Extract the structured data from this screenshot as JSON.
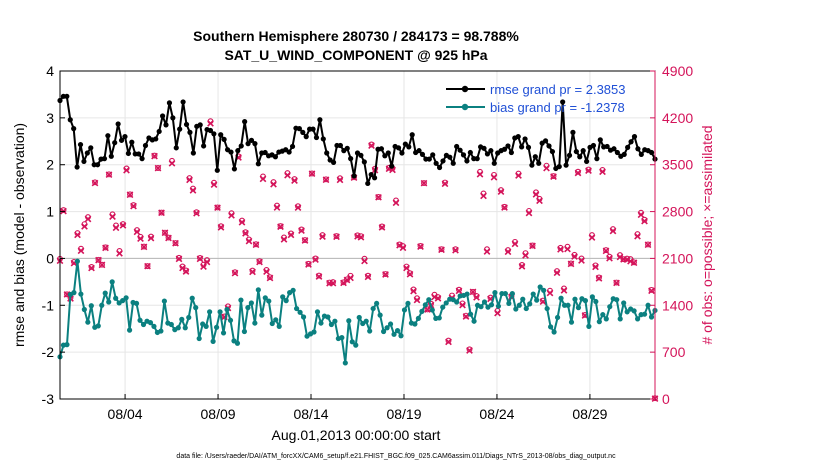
{
  "colors": {
    "rmse": "#000000",
    "bias": "#0b8080",
    "obs": "#d4145a",
    "legend_text": "#1f4fd6",
    "zero_line": "#bdbdbd",
    "grid": "#e6e6e6"
  },
  "chart_data": {
    "type": "line",
    "title": "Southern Hemisphere 280730 / 284173 = 98.788%",
    "subtitle": "SAT_U_WIND_COMPONENT @ 925 hPa",
    "xlabel": "Aug.01,2013 00:00:00 start",
    "ylabel_left": "rmse and bias (model - observation)",
    "ylabel_right": "# of obs: o=possible; ×=assimilated",
    "xlim": [
      0.5,
      32.5
    ],
    "ylim_left": [
      -3,
      4
    ],
    "ylim_right": [
      0,
      4900
    ],
    "yticks_left": [
      "4",
      "3",
      "2",
      "1",
      "0",
      "-1",
      "-2",
      "-3"
    ],
    "yticks_right": [
      "4900",
      "4200",
      "3500",
      "2800",
      "2100",
      "1400",
      "700",
      "0"
    ],
    "xticks": [
      {
        "x": 4,
        "label": "08/04"
      },
      {
        "x": 9,
        "label": "08/09"
      },
      {
        "x": 14,
        "label": "08/14"
      },
      {
        "x": 19,
        "label": "08/19"
      },
      {
        "x": 24,
        "label": "08/24"
      },
      {
        "x": 29,
        "label": "08/29"
      }
    ],
    "grid": true,
    "legend": {
      "position": "top-right",
      "entries": [
        "rmse grand pr = 2.3853",
        "bias grand pr = -1.2378"
      ]
    },
    "series": [
      {
        "name": "rmse",
        "values": [
          3.37,
          3.46,
          3.46,
          2.96,
          2.77,
          1.95,
          2.43,
          2.07,
          2.25,
          2.36,
          2.0,
          2.0,
          2.12,
          2.13,
          2.62,
          2.18,
          2.47,
          2.87,
          2.52,
          2.6,
          2.24,
          2.48,
          2.23,
          2.23,
          2.13,
          2.41,
          2.57,
          2.53,
          2.55,
          2.71,
          3.04,
          2.85,
          3.32,
          3.0,
          2.36,
          2.76,
          3.34,
          2.86,
          2.69,
          2.25,
          2.82,
          2.85,
          2.4,
          2.75,
          2.73,
          2.66,
          1.88,
          2.64,
          2.54,
          2.32,
          2.27,
          1.91,
          2.3,
          2.4,
          2.92,
          2.45,
          2.52,
          2.45,
          2.02,
          2.25,
          2.26,
          2.19,
          2.21,
          2.17,
          2.27,
          2.29,
          2.32,
          2.27,
          2.39,
          2.78,
          2.77,
          2.69,
          2.6,
          2.76,
          2.76,
          2.58,
          2.96,
          2.55,
          2.25,
          2.1,
          2.05,
          2.41,
          2.41,
          2.3,
          2.35,
          2.13,
          1.76,
          2.25,
          2.2,
          2.06,
          1.6,
          1.79,
          1.72,
          2.33,
          2.34,
          2.19,
          2.25,
          1.97,
          2.39,
          2.36,
          2.25,
          2.44,
          2.38,
          2.64,
          2.26,
          2.3,
          2.22,
          2.12,
          2.12,
          2.21,
          2.03,
          1.94,
          2.08,
          2.2,
          2.16,
          2.03,
          2.39,
          2.31,
          2.21,
          2.08,
          2.26,
          2.13,
          2.13,
          2.38,
          2.35,
          2.23,
          2.3,
          2.03,
          2.25,
          2.3,
          2.33,
          2.4,
          2.26,
          2.57,
          2.6,
          2.38,
          2.55,
          2.37,
          1.99,
          2.17,
          2.03,
          2.46,
          2.51,
          2.4,
          2.28,
          1.92,
          1.96,
          3.34,
          1.99,
          2.2,
          2.69,
          2.28,
          2.17,
          2.3,
          2.07,
          2.37,
          2.41,
          2.13,
          2.53,
          2.38,
          2.39,
          2.31,
          2.34,
          2.26,
          2.18,
          2.22,
          2.37,
          2.49,
          2.6,
          2.34,
          2.22,
          2.32,
          2.3,
          2.26,
          2.12
        ]
      },
      {
        "name": "bias",
        "values": [
          -2.1,
          -1.85,
          -1.84,
          -0.77,
          -0.73,
          -0.06,
          -0.76,
          -1.09,
          -1.36,
          -1.01,
          -1.47,
          -1.44,
          -1.0,
          -0.74,
          -0.93,
          -0.5,
          -0.85,
          -0.95,
          -0.9,
          -0.84,
          -1.53,
          -0.94,
          -0.96,
          -1.32,
          -1.41,
          -1.34,
          -1.37,
          -1.45,
          -1.58,
          -1.55,
          -0.91,
          -1.38,
          -1.41,
          -1.52,
          -1.48,
          -1.3,
          -1.48,
          -1.26,
          -0.85,
          -1.05,
          -1.71,
          -1.4,
          -1.45,
          -1.14,
          -1.77,
          -1.47,
          -1.14,
          -1.59,
          -1.09,
          -1.32,
          -1.76,
          -1.81,
          -0.89,
          -1.56,
          -1.05,
          -0.95,
          -1.38,
          -0.67,
          -1.21,
          -0.84,
          -0.91,
          -1.39,
          -1.31,
          -1.45,
          -0.82,
          -0.9,
          -0.73,
          -0.68,
          -1.07,
          -1.15,
          -1.25,
          -1.66,
          -1.61,
          -1.57,
          -1.14,
          -1.38,
          -1.23,
          -1.25,
          -1.41,
          -1.34,
          -1.71,
          -1.69,
          -2.23,
          -1.33,
          -1.78,
          -1.85,
          -1.26,
          -1.39,
          -1.34,
          -1.55,
          -1.07,
          -0.96,
          -1.21,
          -1.56,
          -1.48,
          -1.4,
          -1.62,
          -1.54,
          -1.65,
          -1.1,
          -0.96,
          -1.38,
          -1.4,
          -1.28,
          -1.13,
          -0.99,
          -0.88,
          -1.1,
          -1.28,
          -1.27,
          -1.04,
          -0.95,
          -0.87,
          -0.88,
          -0.93,
          -0.8,
          -0.79,
          -0.76,
          -1.19,
          -1.34,
          -1.0,
          -1.03,
          -0.93,
          -1.04,
          -0.99,
          -0.73,
          -1.02,
          -0.75,
          -0.75,
          -0.96,
          -0.75,
          -1.08,
          -1.0,
          -0.87,
          -1.07,
          -0.97,
          -0.76,
          -0.89,
          -0.61,
          -0.68,
          -1.07,
          -1.46,
          -1.57,
          -1.26,
          -0.85,
          -1.0,
          -1.0,
          -1.36,
          -0.87,
          -1.05,
          -0.86,
          -0.9,
          -1.45,
          -0.82,
          -0.92,
          -1.35,
          -1.2,
          -1.29,
          -1.03,
          -0.86,
          -0.88,
          -1.29,
          -0.95,
          -1.14,
          -1.08,
          -1.12,
          -1.29,
          -1.2,
          -1.19,
          -1.0,
          -1.25,
          -1.11
        ]
      },
      {
        "name": "obs_assimilated",
        "values": [
          2065,
          2806,
          1562,
          1501,
          2030,
          2451,
          2215,
          2578,
          2689,
          1956,
          3226,
          2075,
          2003,
          2258,
          3351,
          2725,
          2559,
          2176,
          2593,
          3418,
          3051,
          2882,
          2496,
          2396,
          2272,
          1984,
          2403,
          3629,
          3449,
          2782,
          2483,
          2405,
          3521,
          2327,
          2093,
          1956,
          1904,
          3274,
          3117,
          2774,
          2093,
          1977,
          2046,
          4117,
          3203,
          2858,
          2564,
          1226,
          1359,
          2743,
          1881,
          3608,
          2641,
          2474,
          2358,
          1899,
          2305,
          2047,
          3288,
          1902,
          1808,
          3208,
          2861,
          2574,
          2384,
          3342,
          2452,
          3262,
          2859,
          2516,
          2368,
          2009,
          3366,
          2082,
          1829,
          2425,
          3276,
          1729,
          1730,
          2424,
          3273,
          1734,
          1778,
          1809,
          3307,
          2430,
          2416,
          2062,
          1824,
          3785,
          3419,
          3013,
          2563,
          1860,
          3439,
          3423,
          2931,
          2296,
          2259,
          1956,
          1863,
          1611,
          1478,
          2277,
          3224,
          1336,
          1404,
          1524,
          1504,
          2229,
          3215,
          853,
          1513,
          2222,
          1615,
          1402,
          1233,
          725,
          1601,
          1518,
          3358,
          3035,
          2203,
          1496,
          3313,
          1283,
          3097,
          2860,
          2200,
          1526,
          2318,
          3338,
          1982,
          2145,
          2778,
          2287,
          3057,
          2962,
          1454,
          3449,
          1584,
          3322,
          1885,
          2235,
          1622,
          2240,
          2018,
          2128,
          3377,
          2069,
          1247,
          3411,
          2412,
          1973,
          1802,
          3395,
          2213,
          2102,
          2510,
          1734,
          2121,
          2086,
          2084,
          2058,
          2036,
          2432,
          2752,
          2657,
          2304,
          1617,
          6
        ]
      },
      {
        "name": "obs_possible",
        "values": [
          2094,
          2822,
          1564,
          1515,
          2047,
          2478,
          2245,
          2612,
          2718,
          1973,
          3237,
          2080,
          2006,
          2265,
          3356,
          2759,
          2592,
          2212,
          2613,
          3444,
          3057,
          2897,
          2524,
          2422,
          2277,
          1985,
          2427,
          3637,
          3451,
          2785,
          2485,
          2412,
          3558,
          2330,
          2109,
          1980,
          1920,
          3300,
          3144,
          2791,
          2107,
          2006,
          2075,
          4150,
          3231,
          2862,
          2581,
          1233,
          1385,
          2775,
          1894,
          3625,
          2665,
          2491,
          2384,
          1918,
          2312,
          2058,
          3324,
          1928,
          1820,
          3240,
          2890,
          2583,
          2413,
          3375,
          2473,
          3286,
          2880,
          2533,
          2375,
          2019,
          3369,
          2099,
          1843,
          2449,
          3282,
          1740,
          1746,
          2434,
          3298,
          1743,
          1787,
          1841,
          3313,
          2445,
          2433,
          2096,
          1842,
          3802,
          3440,
          3018,
          2577,
          1867,
          3453,
          3445,
          2966,
          2308,
          2285,
          1979,
          1879,
          1636,
          1505,
          2286,
          3226,
          1339,
          1423,
          1558,
          1522,
          2238,
          3234,
          872,
          1546,
          2238,
          1633,
          1428,
          1245,
          742,
          1602,
          1540,
          3393,
          3071,
          2238,
          1515,
          3348,
          1317,
          3121,
          2870,
          2225,
          1538,
          2347,
          3368,
          2003,
          2179,
          2810,
          2293,
          3087,
          2990,
          1470,
          3486,
          1618,
          3330,
          1911,
          2258,
          1652,
          2275,
          2025,
          2153,
          3395,
          2100,
          1256,
          3428,
          2448,
          1996,
          1815,
          3422,
          2224,
          2125,
          2538,
          1740,
          2150,
          2089,
          2097,
          2090,
          2042,
          2463,
          2783,
          2678,
          2309,
          1630,
          12
        ]
      }
    ]
  },
  "footnote": "data file: /Users/raeder/DAI/ATM_forcXX/CAM6_setup/f.e21.FHIST_BGC.f09_025.CAM6assim.011/Diags_NTrS_2013-08/obs_diag_output.nc"
}
